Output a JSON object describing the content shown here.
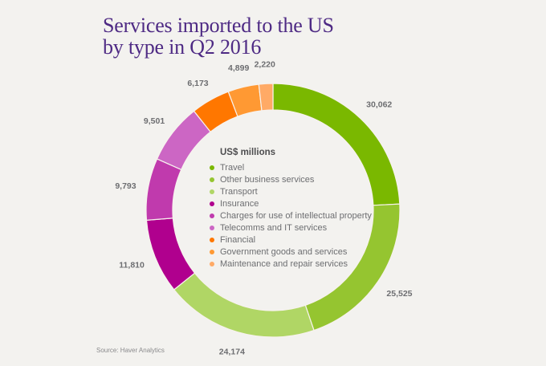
{
  "chart_data": {
    "type": "pie",
    "subtype": "donut",
    "title": "Services imported to the US by type in Q2 2016",
    "title_lines": [
      "Services imported to the US",
      "by type in Q2 2016"
    ],
    "unit_label": "US$ millions",
    "source": "Source: Haver Analytics",
    "start": "top",
    "direction": "clockwise",
    "categories": [
      "Travel",
      "Other business services",
      "Transport",
      "Insurance",
      "Charges for use of intellectual property",
      "Telecomms and IT services",
      "Financial",
      "Government goods and services",
      "Maintenance and repair services"
    ],
    "values": [
      30062,
      25525,
      24174,
      11810,
      9793,
      9501,
      6173,
      4899,
      2220
    ],
    "value_labels": [
      "30,062",
      "25,525",
      "24,174",
      "11,810",
      "9,793",
      "9,501",
      "6,173",
      "4,899",
      "2,220"
    ],
    "colors": [
      "#7ab800",
      "#95c530",
      "#b0d665",
      "#b0008e",
      "#c03aad",
      "#cc66c4",
      "#ff7700",
      "#ff9933",
      "#ffaa66"
    ],
    "legend_position": "center"
  }
}
